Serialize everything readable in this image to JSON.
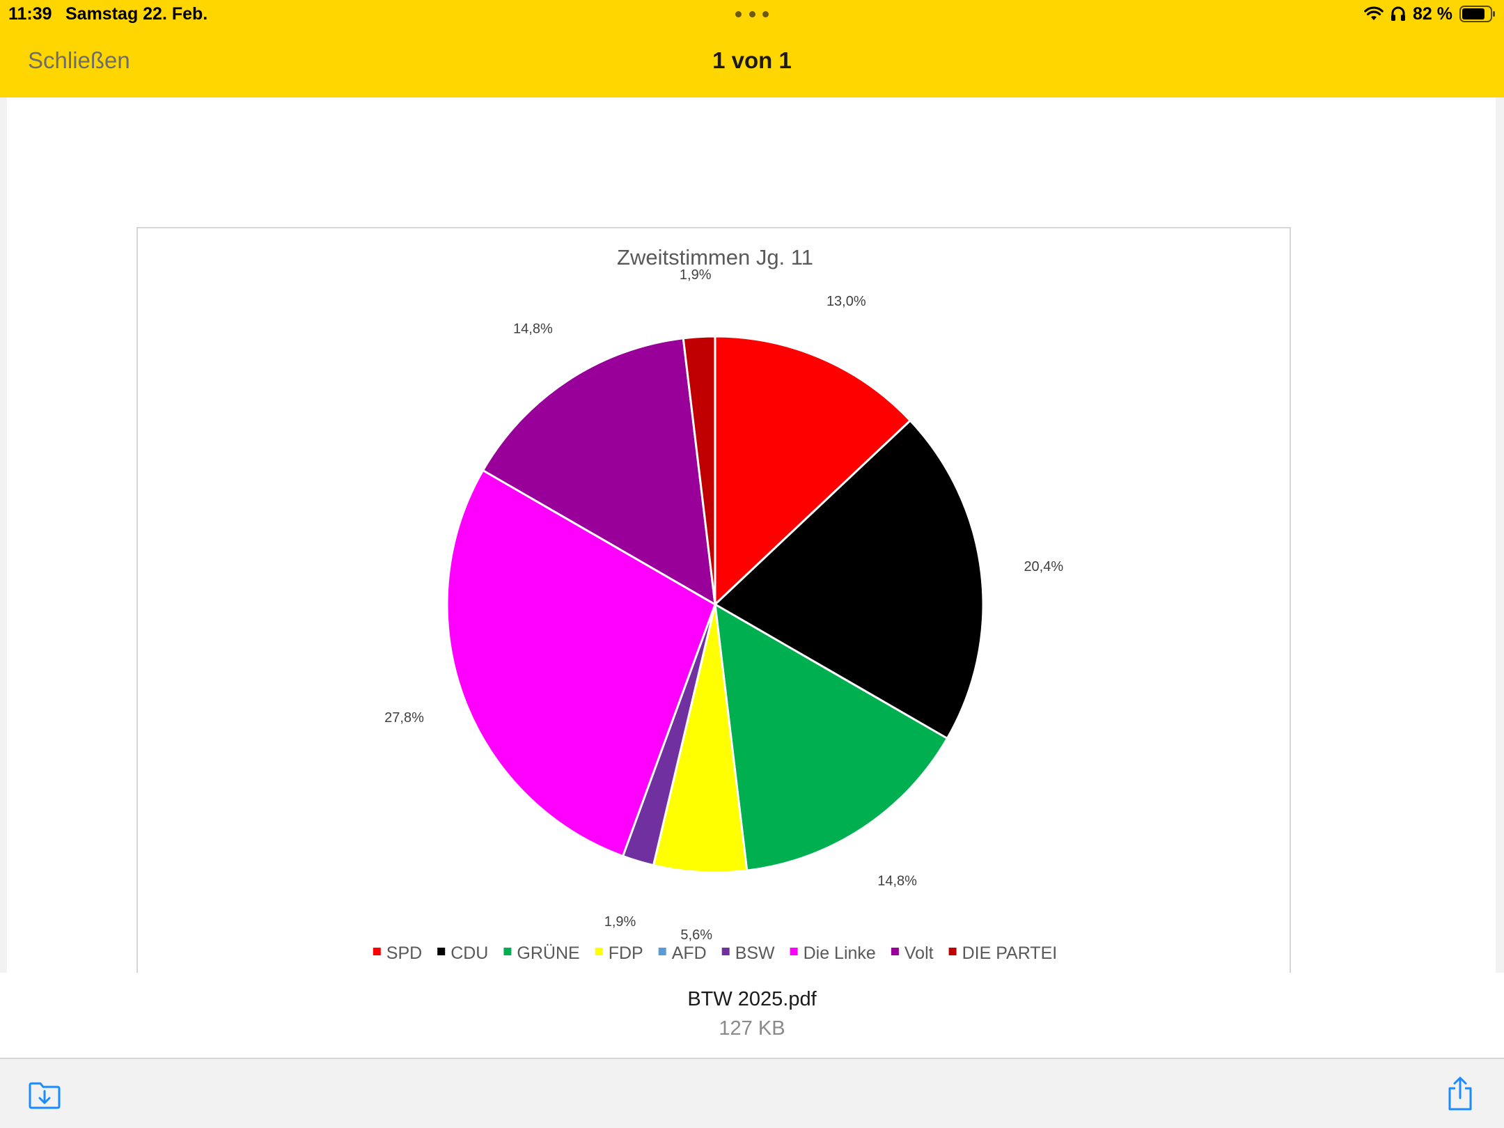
{
  "status_bar": {
    "time": "11:39",
    "date": "Samstag 22. Feb.",
    "battery_percent": "82 %",
    "battery_level": 0.82,
    "icons": [
      "wifi-icon",
      "headphones-icon",
      "battery-icon"
    ]
  },
  "nav": {
    "close_label": "Schließen",
    "page_counter": "1 von 1"
  },
  "file": {
    "name": "BTW 2025.pdf",
    "size": "127 KB"
  },
  "toolbar": {
    "icons": [
      "save-to-files-icon",
      "share-icon"
    ]
  },
  "colors": {
    "header_bg": "#FFD600",
    "toolbar_bg": "#F2F2F2"
  },
  "chart_data": {
    "type": "pie",
    "title": "Zweitstimmen Jg. 11",
    "categories": [
      "SPD",
      "CDU",
      "GRÜNE",
      "FDP",
      "AFD",
      "BSW",
      "Die Linke",
      "Volt",
      "DIE PARTEI"
    ],
    "values": [
      13.0,
      20.4,
      14.8,
      5.6,
      0.0,
      1.9,
      27.8,
      14.8,
      1.9
    ],
    "data_labels": [
      "13,0%",
      "20,4%",
      "14,8%",
      "5,6%",
      "",
      "1,9%",
      "27,8%",
      "14,8%",
      "1,9%"
    ],
    "colors": [
      "#FF0000",
      "#000000",
      "#00B050",
      "#FFFF00",
      "#5B9BD5",
      "#7030A0",
      "#FF00FF",
      "#990099",
      "#C00000"
    ],
    "legend_position": "bottom",
    "start_angle": "12 o'clock",
    "direction": "clockwise"
  }
}
